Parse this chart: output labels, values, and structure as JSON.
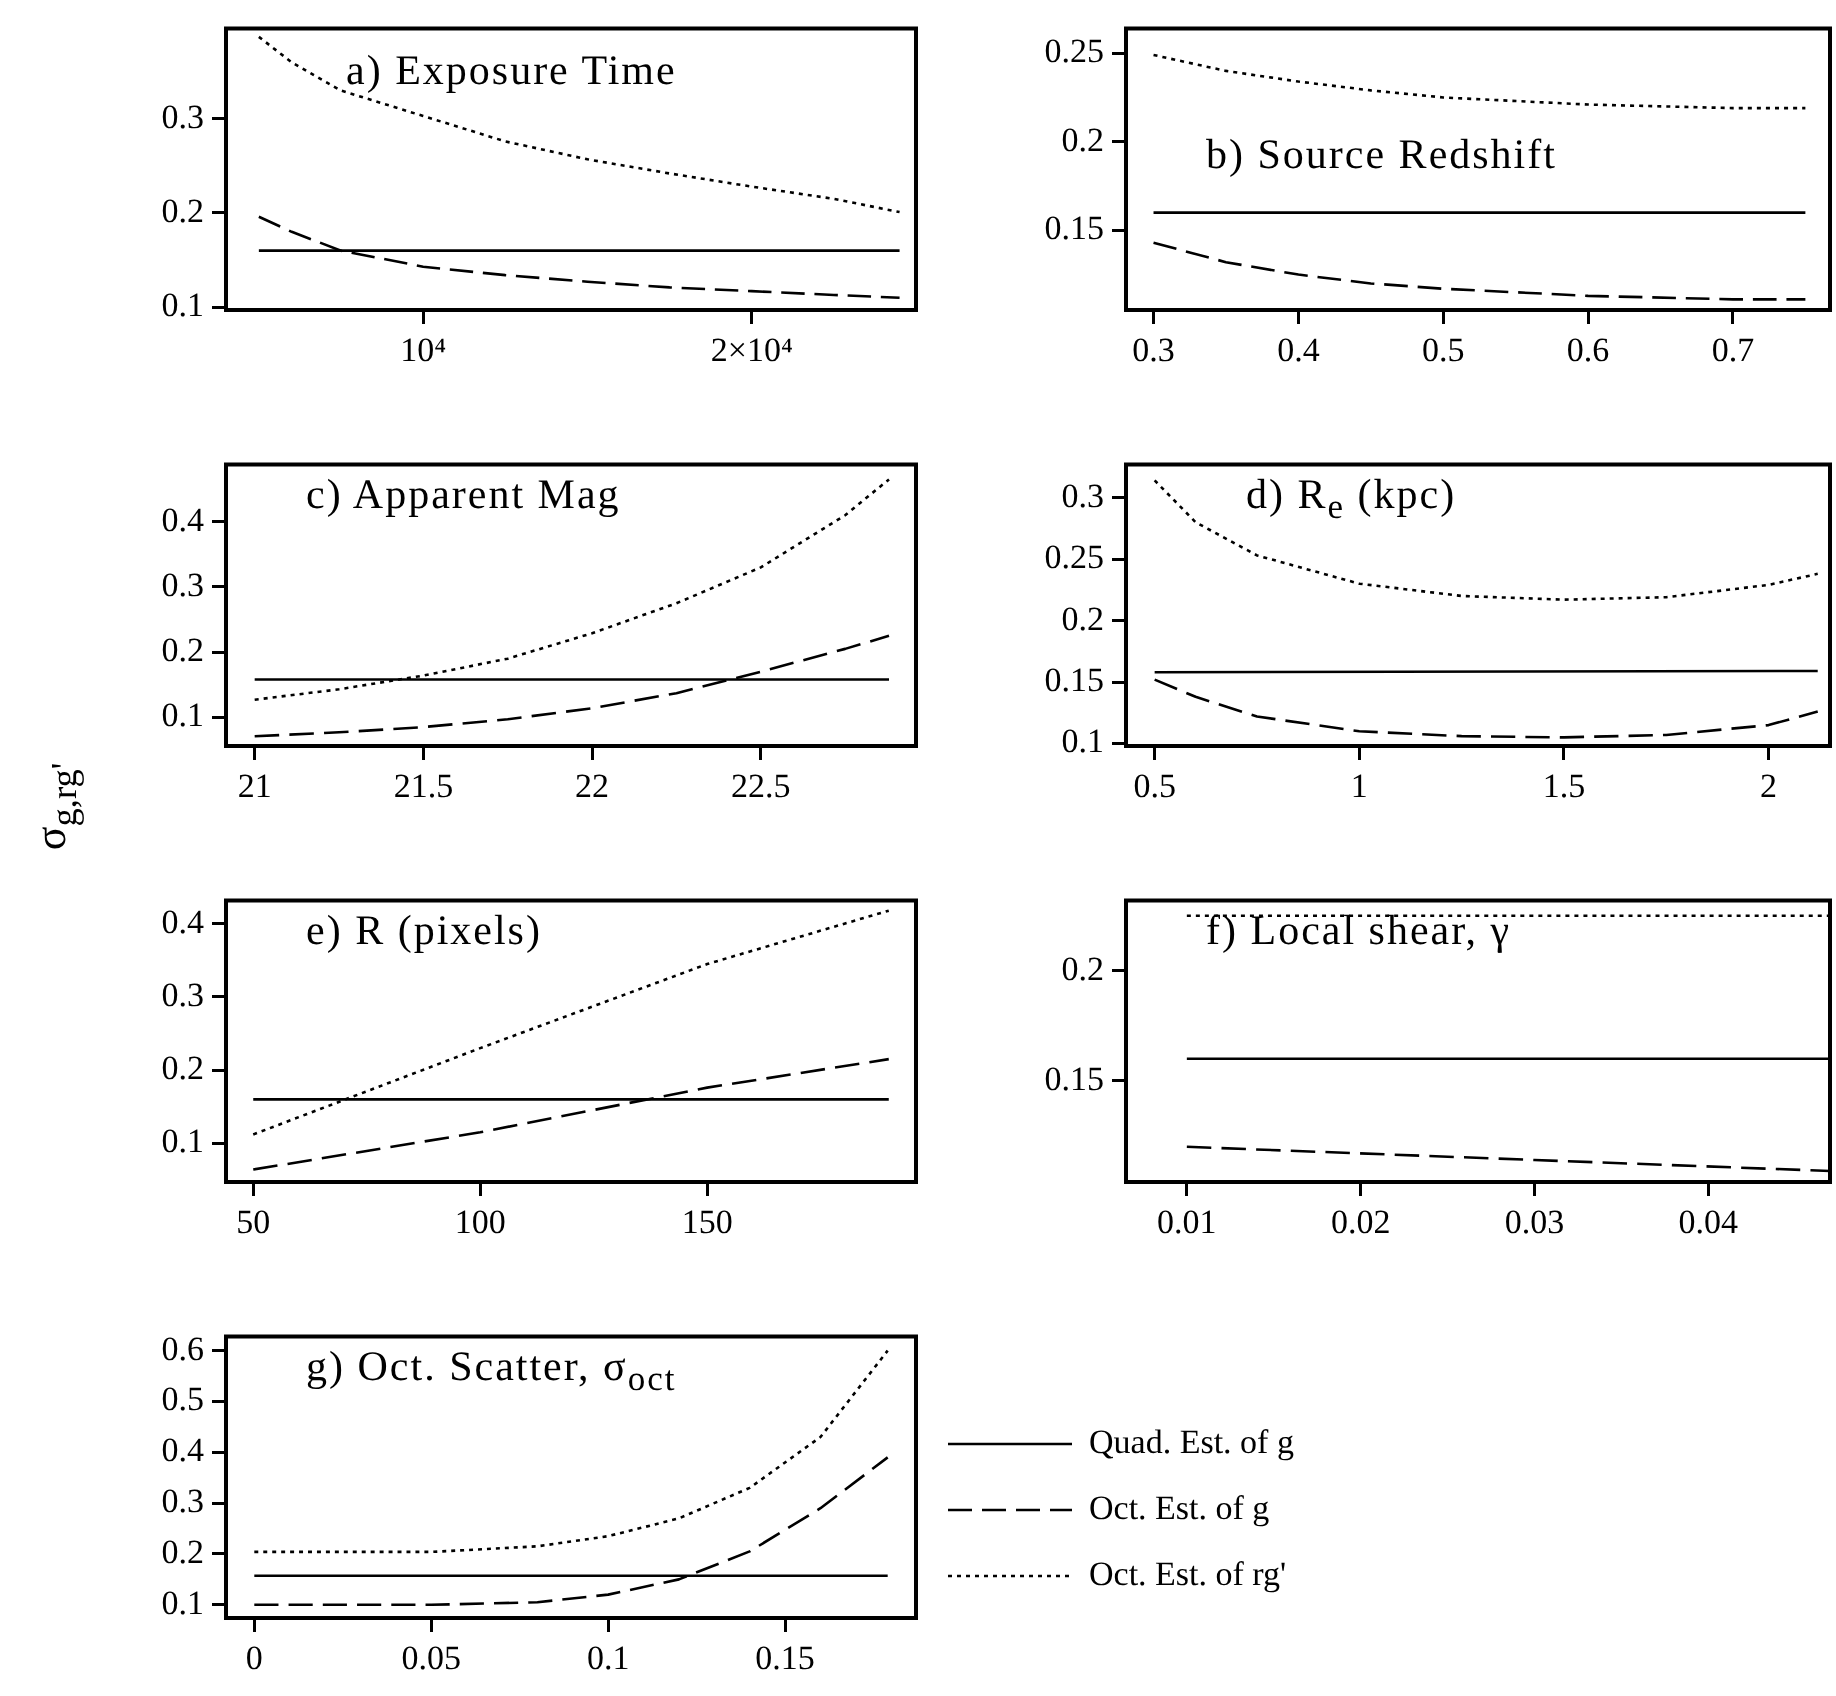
{
  "chart_data": [
    {
      "type": "line",
      "title": "a) Exposure Time",
      "xlim": [
        4000,
        25000
      ],
      "xticks": [
        {
          "value": 10000,
          "label": "10⁴"
        },
        {
          "value": 20000,
          "label": "2×10⁴"
        }
      ],
      "ylim": [
        0.097,
        0.396
      ],
      "yticks": [
        0.1,
        0.2,
        0.3
      ],
      "series": [
        {
          "color": "#000000",
          "line_style": "solid",
          "x": [
            5000,
            24500
          ],
          "values": [
            0.16,
            0.16
          ]
        },
        {
          "color": "#000000",
          "line_style": "dashed",
          "x": [
            5000,
            6000,
            7500,
            10000,
            12500,
            15000,
            17500,
            20000,
            22500,
            24500
          ],
          "values": [
            0.196,
            0.18,
            0.16,
            0.143,
            0.134,
            0.127,
            0.121,
            0.117,
            0.113,
            0.11
          ]
        },
        {
          "color": "#000000",
          "line_style": "dotted",
          "x": [
            5000,
            6000,
            7500,
            10000,
            12500,
            15000,
            17500,
            20000,
            22500,
            24500
          ],
          "values": [
            0.387,
            0.36,
            0.33,
            0.303,
            0.276,
            0.257,
            0.242,
            0.228,
            0.215,
            0.201
          ]
        }
      ]
    },
    {
      "type": "line",
      "title": "b) Source Redshift",
      "xlim": [
        0.281,
        0.767
      ],
      "xticks": [
        0.3,
        0.4,
        0.5,
        0.6,
        0.7
      ],
      "ylim": [
        0.105,
        0.264
      ],
      "yticks": [
        0.15,
        0.2,
        0.25
      ],
      "series": [
        {
          "color": "#000000",
          "line_style": "solid",
          "x": [
            0.3,
            0.75
          ],
          "values": [
            0.16,
            0.16
          ]
        },
        {
          "color": "#000000",
          "line_style": "dashed",
          "x": [
            0.3,
            0.35,
            0.4,
            0.45,
            0.5,
            0.6,
            0.7,
            0.75
          ],
          "values": [
            0.143,
            0.132,
            0.125,
            0.12,
            0.117,
            0.113,
            0.111,
            0.111
          ]
        },
        {
          "color": "#000000",
          "line_style": "dotted",
          "x": [
            0.3,
            0.35,
            0.4,
            0.45,
            0.5,
            0.6,
            0.7,
            0.75
          ],
          "values": [
            0.249,
            0.24,
            0.234,
            0.229,
            0.225,
            0.221,
            0.219,
            0.219
          ]
        }
      ]
    },
    {
      "type": "line",
      "title": "c) Apparent Mag",
      "ylabel": "σ$_{g,rg'}$",
      "xlim": [
        20.915,
        22.96
      ],
      "xticks": [
        21,
        21.5,
        22,
        22.5
      ],
      "ylim": [
        0.056,
        0.488
      ],
      "yticks": [
        0.1,
        0.2,
        0.3,
        0.4
      ],
      "series": [
        {
          "color": "#000000",
          "line_style": "solid",
          "x": [
            21,
            22.88
          ],
          "values": [
            0.158,
            0.158
          ]
        },
        {
          "color": "#000000",
          "line_style": "dashed",
          "x": [
            21,
            21.25,
            21.5,
            21.75,
            22,
            22.25,
            22.5,
            22.75,
            22.88
          ],
          "values": [
            0.071,
            0.077,
            0.085,
            0.097,
            0.114,
            0.137,
            0.17,
            0.205,
            0.225
          ]
        },
        {
          "color": "#000000",
          "line_style": "dotted",
          "x": [
            21,
            21.25,
            21.5,
            21.75,
            22,
            22.25,
            22.5,
            22.75,
            22.88
          ],
          "values": [
            0.127,
            0.143,
            0.164,
            0.19,
            0.229,
            0.275,
            0.33,
            0.41,
            0.465
          ]
        }
      ]
    },
    {
      "type": "line",
      "title": "d) R$_{e}$ (kpc)",
      "xlim": [
        0.43,
        2.15
      ],
      "xticks": [
        0.5,
        1,
        1.5,
        2
      ],
      "ylim": [
        0.098,
        0.327
      ],
      "yticks": [
        0.1,
        0.15,
        0.2,
        0.25,
        0.3
      ],
      "series": [
        {
          "color": "#000000",
          "line_style": "solid",
          "x": [
            0.5,
            2.12
          ],
          "values": [
            0.158,
            0.159
          ]
        },
        {
          "color": "#000000",
          "line_style": "dashed",
          "x": [
            0.5,
            0.6,
            0.75,
            1,
            1.25,
            1.5,
            1.75,
            2,
            2.12
          ],
          "values": [
            0.152,
            0.138,
            0.122,
            0.11,
            0.106,
            0.105,
            0.107,
            0.115,
            0.126
          ]
        },
        {
          "color": "#000000",
          "line_style": "dotted",
          "x": [
            0.5,
            0.6,
            0.75,
            1,
            1.25,
            1.5,
            1.75,
            2,
            2.12
          ],
          "values": [
            0.314,
            0.28,
            0.253,
            0.23,
            0.22,
            0.217,
            0.219,
            0.229,
            0.238
          ]
        }
      ]
    },
    {
      "type": "line",
      "title": "e) R (pixels)",
      "xlim": [
        44,
        196
      ],
      "xticks": [
        50,
        100,
        150
      ],
      "ylim": [
        0.047,
        0.432
      ],
      "yticks": [
        0.1,
        0.2,
        0.3,
        0.4
      ],
      "series": [
        {
          "color": "#000000",
          "line_style": "solid",
          "x": [
            50,
            190
          ],
          "values": [
            0.16,
            0.16
          ]
        },
        {
          "color": "#000000",
          "line_style": "dashed",
          "x": [
            50,
            100,
            150,
            190
          ],
          "values": [
            0.064,
            0.115,
            0.176,
            0.215
          ]
        },
        {
          "color": "#000000",
          "line_style": "dotted",
          "x": [
            50,
            100,
            150,
            190
          ],
          "values": [
            0.112,
            0.23,
            0.345,
            0.418
          ]
        }
      ]
    },
    {
      "type": "line",
      "title": "f) Local shear, γ",
      "xlim": [
        0.0065,
        0.047
      ],
      "xticks": [
        0.01,
        0.02,
        0.03,
        0.04
      ],
      "ylim": [
        0.104,
        0.232
      ],
      "yticks": [
        0.15,
        0.2
      ],
      "series": [
        {
          "color": "#000000",
          "line_style": "solid",
          "x": [
            0.01,
            0.047
          ],
          "values": [
            0.16,
            0.16
          ]
        },
        {
          "color": "#000000",
          "line_style": "dashed",
          "x": [
            0.01,
            0.03,
            0.047
          ],
          "values": [
            0.12,
            0.114,
            0.109
          ]
        },
        {
          "color": "#000000",
          "line_style": "dotted",
          "x": [
            0.01,
            0.047
          ],
          "values": [
            0.225,
            0.225
          ]
        }
      ]
    },
    {
      "type": "line",
      "title": "g) Oct. Scatter, σ$_{oct}$",
      "legend": "right",
      "xlim": [
        -0.008,
        0.187
      ],
      "xticks": [
        0,
        0.05,
        0.1,
        0.15
      ],
      "ylim": [
        0.074,
        0.628
      ],
      "yticks": [
        0.1,
        0.2,
        0.3,
        0.4,
        0.5,
        0.6
      ],
      "series": [
        {
          "name": "Quad. Est. of g",
          "color": "#000000",
          "line_style": "solid",
          "x": [
            0,
            0.179
          ],
          "values": [
            0.157,
            0.157
          ]
        },
        {
          "name": "Oct. Est. of g",
          "color": "#000000",
          "line_style": "dashed",
          "x": [
            0,
            0.05,
            0.08,
            0.1,
            0.12,
            0.14,
            0.16,
            0.179
          ],
          "values": [
            0.1,
            0.1,
            0.105,
            0.12,
            0.15,
            0.205,
            0.29,
            0.39
          ]
        },
        {
          "name": "Oct. Est. of rg'",
          "color": "#000000",
          "line_style": "dotted",
          "x": [
            0,
            0.05,
            0.08,
            0.1,
            0.12,
            0.14,
            0.16,
            0.179
          ],
          "values": [
            0.204,
            0.204,
            0.215,
            0.235,
            0.27,
            0.33,
            0.43,
            0.6
          ]
        }
      ]
    }
  ]
}
